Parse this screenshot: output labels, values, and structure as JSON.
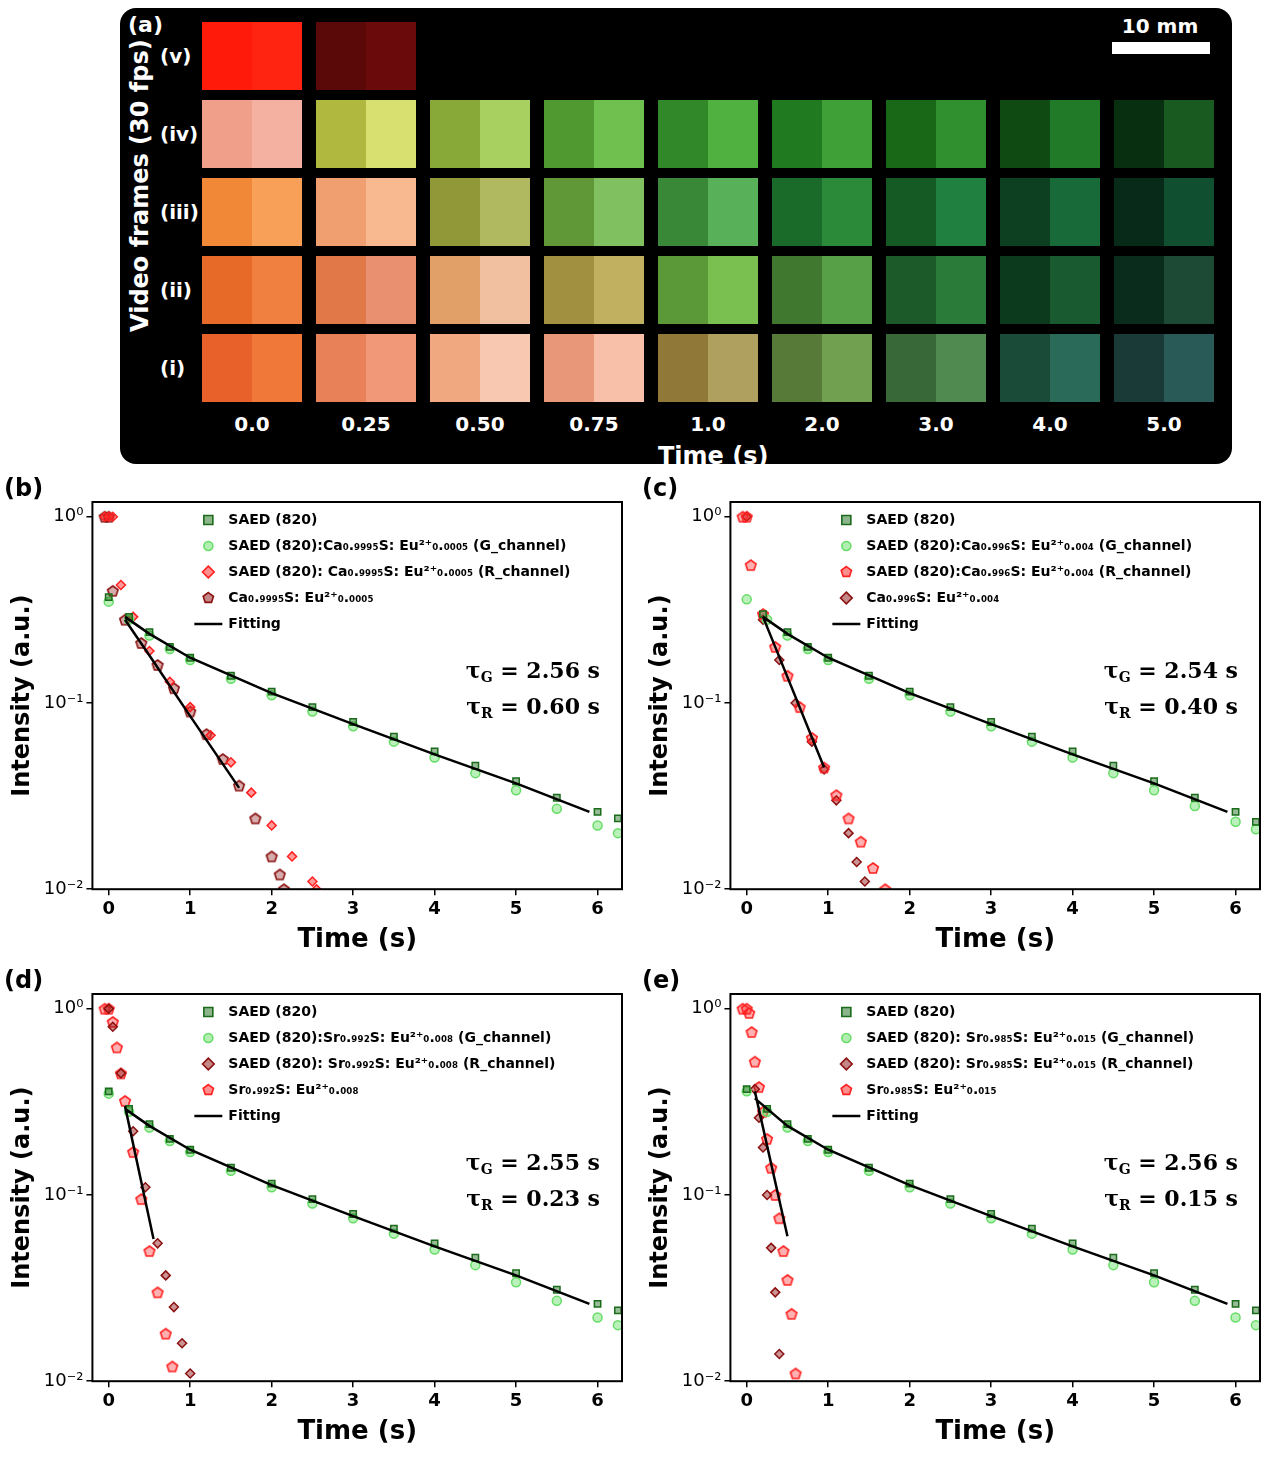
{
  "panel_a": {
    "panel": "(a)",
    "y_title": "Video frames (30 fps)",
    "x_title": "Time (s)",
    "scale_bar": "10 mm",
    "times": [
      "0.0",
      "0.25",
      "0.50",
      "0.75",
      "1.0",
      "2.0",
      "3.0",
      "4.0",
      "5.0"
    ],
    "rows": [
      {
        "label": "(v)",
        "frames": [
          [
            "#ff1a0a",
            "#ff2412"
          ],
          [
            "#5a0808",
            "#6a0a0a"
          ]
        ]
      },
      {
        "label": "(iv)",
        "frames": [
          [
            "#f0a08a",
            "#f4b0a0"
          ],
          [
            "#b0b840",
            "#d8e070"
          ],
          [
            "#88a838",
            "#a8d060"
          ],
          [
            "#509830",
            "#70c050"
          ],
          [
            "#308828",
            "#50b040"
          ],
          [
            "#207a20",
            "#40a038"
          ],
          [
            "#186818",
            "#309030"
          ],
          [
            "#0e4a12",
            "#207a28"
          ],
          [
            "#083010",
            "#185a20"
          ]
        ]
      },
      {
        "label": "(iii)",
        "frames": [
          [
            "#f08838",
            "#f8a058"
          ],
          [
            "#f0a070",
            "#f8b890"
          ],
          [
            "#909838",
            "#b0b860"
          ],
          [
            "#609838",
            "#80c060"
          ],
          [
            "#388838",
            "#58b058"
          ],
          [
            "#1a6a2a",
            "#2a8a3a"
          ],
          [
            "#155a25",
            "#208040"
          ],
          [
            "#0c4020",
            "#186a38"
          ],
          [
            "#082a18",
            "#105030"
          ]
        ]
      },
      {
        "label": "(ii)",
        "frames": [
          [
            "#e86a28",
            "#f08040"
          ],
          [
            "#e07848",
            "#e89070"
          ],
          [
            "#e0a068",
            "#f0c0a0"
          ],
          [
            "#a09040",
            "#c0b060"
          ],
          [
            "#5a9838",
            "#7ac050"
          ],
          [
            "#407830",
            "#58a048"
          ],
          [
            "#1c5a2a",
            "#2a7a3a"
          ],
          [
            "#0c3a1c",
            "#1a5a30"
          ],
          [
            "#0a2c1c",
            "#1c4a34"
          ]
        ]
      },
      {
        "label": "(i)",
        "frames": [
          [
            "#e8602a",
            "#f07838"
          ],
          [
            "#e88058",
            "#f09878"
          ],
          [
            "#f0a880",
            "#f8c8b0"
          ],
          [
            "#e89878",
            "#f8c0a8"
          ],
          [
            "#907838",
            "#b0a060"
          ],
          [
            "#587a38",
            "#70a050"
          ],
          [
            "#386838",
            "#508a50"
          ],
          [
            "#1a4a38",
            "#2a6a58"
          ],
          [
            "#1a3a38",
            "#2a5a58"
          ]
        ]
      }
    ]
  },
  "chart_data": [
    {
      "type": "scatter",
      "panel": "(b)",
      "x_label": "Time (s)",
      "y_label": "Intensity (a.u.)",
      "xlim": [
        -0.2,
        6.3
      ],
      "xticks": [
        0,
        1,
        2,
        3,
        4,
        5,
        6
      ],
      "ylim": [
        0.01,
        1.2
      ],
      "yticks": [
        {
          "value": 0.01,
          "label": "10⁻²"
        },
        {
          "value": 0.1,
          "label": "10⁻¹"
        },
        {
          "value": 1,
          "label": "10⁰"
        }
      ],
      "log": "y",
      "grid": false,
      "legend": "top",
      "annotations": [
        "τG = 2.56 s",
        "τR = 0.60 s"
      ],
      "series": [
        {
          "name": "SAED (820)",
          "color": "#1a6b1a",
          "marker": "square",
          "x": [
            0,
            0.25,
            0.5,
            0.75,
            1,
            1.5,
            2,
            2.5,
            3,
            3.5,
            4,
            4.5,
            5,
            5.5,
            6,
            6.25
          ],
          "values": [
            0.37,
            0.29,
            0.24,
            0.2,
            0.175,
            0.14,
            0.115,
            0.095,
            0.079,
            0.066,
            0.055,
            0.046,
            0.038,
            0.031,
            0.026,
            0.024
          ]
        },
        {
          "name": "SAED (820):Ca₀.₉₉₉₅S: Eu²⁺₀.₀₀₀₅ (G_channel)",
          "color": "#66dd66",
          "marker": "circle",
          "x": [
            0,
            0.25,
            0.5,
            0.75,
            1,
            1.5,
            2,
            2.5,
            3,
            3.5,
            4,
            4.5,
            5,
            5.5,
            6,
            6.25
          ],
          "values": [
            0.35,
            0.28,
            0.23,
            0.195,
            0.17,
            0.135,
            0.11,
            0.09,
            0.075,
            0.062,
            0.051,
            0.042,
            0.034,
            0.027,
            0.022,
            0.02
          ]
        },
        {
          "name": "SAED (820): Ca₀.₉₉₉₅S: Eu²⁺₀.₀₀₀₅ (R_channel)",
          "color": "#ff2020",
          "marker": "diamond",
          "x": [
            -0.05,
            0,
            0.05,
            0.15,
            0.3,
            0.5,
            0.75,
            1,
            1.25,
            1.5,
            1.75,
            2,
            2.25,
            2.5,
            2.55
          ],
          "values": [
            1,
            1,
            1,
            0.43,
            0.29,
            0.19,
            0.13,
            0.095,
            0.067,
            0.048,
            0.033,
            0.022,
            0.015,
            0.011,
            0.01
          ]
        },
        {
          "name": "Ca₀.₉₉₉₅S: Eu²⁺₀.₀₀₀₅",
          "color": "#8b1010",
          "marker": "pentagon",
          "x": [
            -0.05,
            0,
            0.05,
            0.2,
            0.4,
            0.6,
            0.8,
            1,
            1.2,
            1.4,
            1.6,
            1.8,
            2,
            2.1,
            2.15
          ],
          "values": [
            1,
            1,
            0.4,
            0.28,
            0.21,
            0.16,
            0.12,
            0.09,
            0.068,
            0.05,
            0.036,
            0.024,
            0.015,
            0.012,
            0.01
          ]
        },
        {
          "name": "Fitting",
          "color": "#000000",
          "marker": "none",
          "line_style": "solid",
          "x": [
            0.2,
            0.5,
            1,
            2,
            3,
            4,
            5,
            5.9,
            null,
            0.2,
            0.5,
            1,
            1.6
          ],
          "values": [
            0.29,
            0.235,
            0.175,
            0.113,
            0.077,
            0.053,
            0.037,
            0.026,
            null,
            0.28,
            0.18,
            0.085,
            0.035
          ]
        }
      ]
    },
    {
      "type": "scatter",
      "panel": "(c)",
      "x_label": "Time (s)",
      "y_label": "Intensity (a.u.)",
      "xlim": [
        -0.2,
        6.3
      ],
      "xticks": [
        0,
        1,
        2,
        3,
        4,
        5,
        6
      ],
      "ylim": [
        0.01,
        1.2
      ],
      "yticks": [
        {
          "value": 0.01,
          "label": "10⁻²"
        },
        {
          "value": 0.1,
          "label": "10⁻¹"
        },
        {
          "value": 1,
          "label": "10⁰"
        }
      ],
      "log": "y",
      "grid": false,
      "legend": "top",
      "annotations": [
        "τG = 2.54 s",
        "τR = 0.40 s"
      ],
      "series": [
        {
          "name": "SAED (820)",
          "color": "#1a6b1a",
          "marker": "square",
          "x": [
            0.2,
            0.5,
            0.75,
            1,
            1.5,
            2,
            2.5,
            3,
            3.5,
            4,
            4.5,
            5,
            5.5,
            6,
            6.25
          ],
          "values": [
            0.3,
            0.24,
            0.2,
            0.175,
            0.14,
            0.115,
            0.095,
            0.079,
            0.066,
            0.055,
            0.046,
            0.038,
            0.031,
            0.026,
            0.023
          ]
        },
        {
          "name": "SAED (820):Ca₀.₉₉₆S: Eu²⁺₀.₀₀₄ (G_channel)",
          "color": "#66dd66",
          "marker": "circle",
          "x": [
            0,
            0.25,
            0.5,
            0.75,
            1,
            1.5,
            2,
            2.5,
            3,
            3.5,
            4,
            4.5,
            5,
            5.5,
            6,
            6.25
          ],
          "values": [
            0.36,
            0.28,
            0.23,
            0.195,
            0.17,
            0.135,
            0.11,
            0.09,
            0.075,
            0.062,
            0.051,
            0.042,
            0.034,
            0.028,
            0.023,
            0.021
          ]
        },
        {
          "name": "SAED (820):Ca₀.₉₉₆S: Eu²⁺₀.₀₀₄ (R_channel)",
          "color": "#ff2020",
          "marker": "pentagon",
          "x": [
            -0.05,
            0,
            0.05,
            0.2,
            0.35,
            0.5,
            0.65,
            0.8,
            0.95,
            1.1,
            1.25,
            1.4,
            1.55,
            1.7
          ],
          "values": [
            1,
            1,
            0.55,
            0.3,
            0.2,
            0.14,
            0.095,
            0.065,
            0.045,
            0.032,
            0.024,
            0.018,
            0.013,
            0.01
          ]
        },
        {
          "name": "Ca₀.₉₉₆S: Eu²⁺₀.₀₀₄",
          "color": "#8b1010",
          "marker": "diamond",
          "x": [
            0,
            0.2,
            0.4,
            0.6,
            0.8,
            0.95,
            1.1,
            1.25,
            1.35,
            1.45
          ],
          "values": [
            1,
            0.28,
            0.17,
            0.1,
            0.062,
            0.044,
            0.03,
            0.02,
            0.014,
            0.011
          ]
        },
        {
          "name": "Fitting",
          "color": "#000000",
          "marker": "none",
          "line_style": "solid",
          "x": [
            0.2,
            0.5,
            1,
            2,
            3,
            4,
            5,
            5.9,
            null,
            0.2,
            0.95
          ],
          "values": [
            0.29,
            0.235,
            0.175,
            0.113,
            0.077,
            0.053,
            0.037,
            0.026,
            null,
            0.29,
            0.045
          ]
        }
      ]
    },
    {
      "type": "scatter",
      "panel": "(d)",
      "x_label": "Time (s)",
      "y_label": "Intensity (a.u.)",
      "xlim": [
        -0.2,
        6.3
      ],
      "xticks": [
        0,
        1,
        2,
        3,
        4,
        5,
        6
      ],
      "ylim": [
        0.01,
        1.2
      ],
      "yticks": [
        {
          "value": 0.01,
          "label": "10⁻²"
        },
        {
          "value": 0.1,
          "label": "10⁻¹"
        },
        {
          "value": 1,
          "label": "10⁰"
        }
      ],
      "log": "y",
      "grid": false,
      "legend": "top",
      "annotations": [
        "τG = 2.55 s",
        "τR = 0.23 s"
      ],
      "series": [
        {
          "name": "SAED (820)",
          "color": "#1a6b1a",
          "marker": "square",
          "x": [
            0,
            0.25,
            0.5,
            0.75,
            1,
            1.5,
            2,
            2.5,
            3,
            3.5,
            4,
            4.5,
            5,
            5.5,
            6,
            6.25
          ],
          "values": [
            0.36,
            0.29,
            0.24,
            0.2,
            0.175,
            0.14,
            0.115,
            0.095,
            0.079,
            0.066,
            0.055,
            0.046,
            0.038,
            0.031,
            0.026,
            0.024
          ]
        },
        {
          "name": "SAED (820):Sr₀.₉₉₂S: Eu²⁺₀.₀₀₈ (G_channel)",
          "color": "#66dd66",
          "marker": "circle",
          "x": [
            0,
            0.25,
            0.5,
            0.75,
            1,
            1.5,
            2,
            2.5,
            3,
            3.5,
            4,
            4.5,
            5,
            5.5,
            6,
            6.25
          ],
          "values": [
            0.35,
            0.28,
            0.23,
            0.195,
            0.17,
            0.135,
            0.11,
            0.09,
            0.075,
            0.062,
            0.051,
            0.042,
            0.034,
            0.027,
            0.022,
            0.02
          ]
        },
        {
          "name": "SAED (820): Sr₀.₉₉₂S: Eu²⁺₀.₀₀₈ (R_channel)",
          "color": "#8b1010",
          "marker": "diamond",
          "x": [
            0,
            0.05,
            0.15,
            0.3,
            0.45,
            0.6,
            0.7,
            0.8,
            0.9,
            1.0
          ],
          "values": [
            1,
            0.8,
            0.45,
            0.22,
            0.11,
            0.055,
            0.037,
            0.025,
            0.016,
            0.011
          ]
        },
        {
          "name": "Sr₀.₉₉₂S: Eu²⁺₀.₀₀₈",
          "color": "#ff2020",
          "marker": "pentagon",
          "x": [
            -0.05,
            0,
            0.05,
            0.1,
            0.15,
            0.2,
            0.3,
            0.4,
            0.5,
            0.6,
            0.7,
            0.78
          ],
          "values": [
            1,
            1,
            0.85,
            0.62,
            0.45,
            0.32,
            0.17,
            0.095,
            0.05,
            0.03,
            0.018,
            0.012
          ]
        },
        {
          "name": "Fitting",
          "color": "#000000",
          "marker": "none",
          "line_style": "solid",
          "x": [
            0.2,
            0.5,
            1,
            2,
            3,
            4,
            5,
            5.9,
            null,
            0.2,
            0.55
          ],
          "values": [
            0.29,
            0.235,
            0.175,
            0.113,
            0.077,
            0.053,
            0.037,
            0.026,
            null,
            0.3,
            0.058
          ]
        }
      ]
    },
    {
      "type": "scatter",
      "panel": "(e)",
      "x_label": "Time (s)",
      "y_label": "Intensity (a.u.)",
      "xlim": [
        -0.2,
        6.3
      ],
      "xticks": [
        0,
        1,
        2,
        3,
        4,
        5,
        6
      ],
      "ylim": [
        0.01,
        1.2
      ],
      "yticks": [
        {
          "value": 0.01,
          "label": "10⁻²"
        },
        {
          "value": 0.1,
          "label": "10⁻¹"
        },
        {
          "value": 1,
          "label": "10⁰"
        }
      ],
      "log": "y",
      "grid": false,
      "legend": "top",
      "annotations": [
        "τG = 2.56 s",
        "τR = 0.15 s"
      ],
      "series": [
        {
          "name": "SAED (820)",
          "color": "#1a6b1a",
          "marker": "square",
          "x": [
            0,
            0.25,
            0.5,
            0.75,
            1,
            1.5,
            2,
            2.5,
            3,
            3.5,
            4,
            4.5,
            5,
            5.5,
            6,
            6.25
          ],
          "values": [
            0.37,
            0.29,
            0.24,
            0.2,
            0.175,
            0.14,
            0.115,
            0.095,
            0.079,
            0.066,
            0.055,
            0.046,
            0.038,
            0.031,
            0.026,
            0.024
          ]
        },
        {
          "name": "SAED (820): Sr₀.₉₈₅S: Eu²⁺₀.₀₁₅ (G_channel)",
          "color": "#66dd66",
          "marker": "circle",
          "x": [
            0,
            0.25,
            0.5,
            0.75,
            1,
            1.5,
            2,
            2.5,
            3,
            3.5,
            4,
            4.5,
            5,
            5.5,
            6,
            6.25
          ],
          "values": [
            0.36,
            0.28,
            0.23,
            0.195,
            0.17,
            0.135,
            0.11,
            0.09,
            0.075,
            0.062,
            0.051,
            0.042,
            0.034,
            0.027,
            0.022,
            0.02
          ]
        },
        {
          "name": "SAED (820): Sr₀.₉₈₅S: Eu²⁺₀.₀₁₅ (R_channel)",
          "color": "#8b1010",
          "marker": "diamond",
          "x": [
            0.1,
            0.15,
            0.2,
            0.25,
            0.3,
            0.35,
            0.4
          ],
          "values": [
            0.37,
            0.26,
            0.18,
            0.1,
            0.052,
            0.03,
            0.014
          ]
        },
        {
          "name": "Sr₀.₉₈₅S: Eu²⁺₀.₀₁₅",
          "color": "#ff2020",
          "marker": "pentagon",
          "x": [
            -0.05,
            0,
            0.03,
            0.06,
            0.1,
            0.15,
            0.2,
            0.25,
            0.3,
            0.35,
            0.4,
            0.45,
            0.5,
            0.55,
            0.6
          ],
          "values": [
            1,
            1,
            0.95,
            0.75,
            0.52,
            0.38,
            0.28,
            0.2,
            0.14,
            0.1,
            0.075,
            0.05,
            0.035,
            0.023,
            0.011
          ]
        },
        {
          "name": "Fitting",
          "color": "#000000",
          "marker": "none",
          "line_style": "solid",
          "x": [
            0.1,
            0.5,
            1,
            2,
            3,
            4,
            5,
            5.9,
            null,
            0.1,
            0.5
          ],
          "values": [
            0.33,
            0.235,
            0.175,
            0.113,
            0.077,
            0.053,
            0.037,
            0.026,
            null,
            0.36,
            0.06
          ]
        }
      ]
    }
  ]
}
